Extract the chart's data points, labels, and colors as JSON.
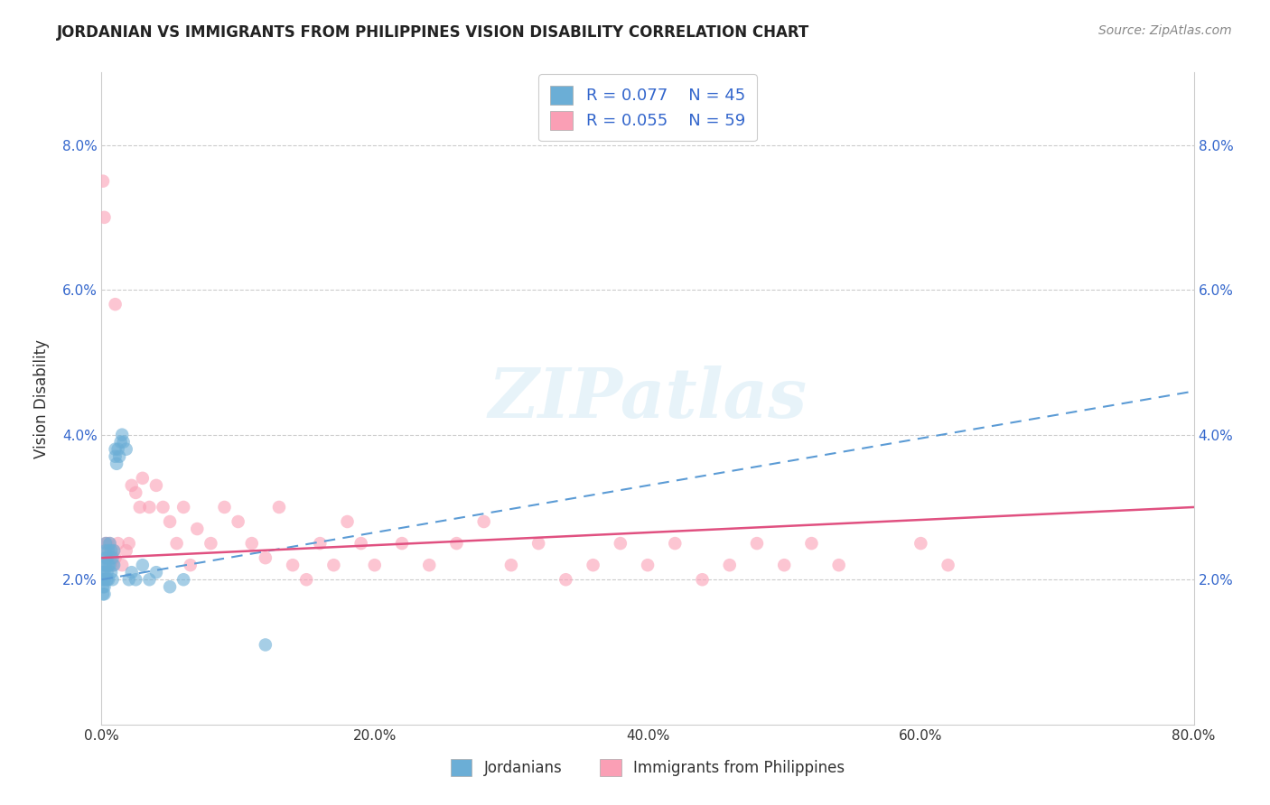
{
  "title": "JORDANIAN VS IMMIGRANTS FROM PHILIPPINES VISION DISABILITY CORRELATION CHART",
  "source": "Source: ZipAtlas.com",
  "xlabel_jordanians": "Jordanians",
  "xlabel_philippines": "Immigrants from Philippines",
  "ylabel": "Vision Disability",
  "xlim": [
    0,
    0.8
  ],
  "ylim": [
    0,
    0.09
  ],
  "xticks": [
    0.0,
    0.2,
    0.4,
    0.6,
    0.8
  ],
  "yticks": [
    0.02,
    0.04,
    0.06,
    0.08
  ],
  "ytick_labels": [
    "2.0%",
    "4.0%",
    "6.0%",
    "8.0%"
  ],
  "xtick_labels": [
    "0.0%",
    "20.0%",
    "40.0%",
    "60.0%",
    "80.0%"
  ],
  "color_jordanian": "#6baed6",
  "color_philippines": "#fa9fb5",
  "trendline_jordanian_color": "#5b9bd5",
  "trendline_philippines_color": "#e05080",
  "R_jordanian": 0.077,
  "N_jordanian": 45,
  "R_philippines": 0.055,
  "N_philippines": 59,
  "legend_text_color": "#3366cc",
  "background_color": "#ffffff",
  "grid_color": "#cccccc",
  "watermark": "ZIPatlas",
  "trendline_j_x0": 0.0,
  "trendline_j_y0": 0.02,
  "trendline_j_x1": 0.8,
  "trendline_j_y1": 0.046,
  "trendline_p_x0": 0.0,
  "trendline_p_y0": 0.023,
  "trendline_p_x1": 0.8,
  "trendline_p_y1": 0.03,
  "jordanian_x": [
    0.001,
    0.001,
    0.001,
    0.001,
    0.002,
    0.002,
    0.002,
    0.002,
    0.002,
    0.003,
    0.003,
    0.003,
    0.003,
    0.004,
    0.004,
    0.004,
    0.005,
    0.005,
    0.005,
    0.006,
    0.006,
    0.007,
    0.007,
    0.008,
    0.008,
    0.009,
    0.009,
    0.01,
    0.01,
    0.011,
    0.012,
    0.013,
    0.014,
    0.015,
    0.016,
    0.018,
    0.02,
    0.022,
    0.025,
    0.03,
    0.035,
    0.04,
    0.05,
    0.06,
    0.12
  ],
  "jordanian_y": [
    0.02,
    0.019,
    0.021,
    0.018,
    0.02,
    0.022,
    0.019,
    0.021,
    0.018,
    0.024,
    0.023,
    0.025,
    0.022,
    0.02,
    0.023,
    0.021,
    0.024,
    0.022,
    0.02,
    0.025,
    0.022,
    0.024,
    0.021,
    0.023,
    0.02,
    0.022,
    0.024,
    0.038,
    0.037,
    0.036,
    0.038,
    0.037,
    0.039,
    0.04,
    0.039,
    0.038,
    0.02,
    0.021,
    0.02,
    0.022,
    0.02,
    0.021,
    0.019,
    0.02,
    0.011
  ],
  "philippines_x": [
    0.001,
    0.002,
    0.003,
    0.004,
    0.005,
    0.006,
    0.007,
    0.008,
    0.009,
    0.01,
    0.012,
    0.015,
    0.018,
    0.02,
    0.022,
    0.025,
    0.028,
    0.03,
    0.035,
    0.04,
    0.045,
    0.05,
    0.055,
    0.06,
    0.065,
    0.07,
    0.08,
    0.09,
    0.1,
    0.11,
    0.12,
    0.13,
    0.14,
    0.15,
    0.16,
    0.17,
    0.18,
    0.19,
    0.2,
    0.22,
    0.24,
    0.26,
    0.28,
    0.3,
    0.32,
    0.34,
    0.36,
    0.38,
    0.4,
    0.42,
    0.44,
    0.46,
    0.48,
    0.5,
    0.52,
    0.54,
    0.6,
    0.62,
    0.01
  ],
  "philippines_y": [
    0.075,
    0.07,
    0.025,
    0.025,
    0.024,
    0.025,
    0.023,
    0.022,
    0.024,
    0.023,
    0.025,
    0.022,
    0.024,
    0.025,
    0.033,
    0.032,
    0.03,
    0.034,
    0.03,
    0.033,
    0.03,
    0.028,
    0.025,
    0.03,
    0.022,
    0.027,
    0.025,
    0.03,
    0.028,
    0.025,
    0.023,
    0.03,
    0.022,
    0.02,
    0.025,
    0.022,
    0.028,
    0.025,
    0.022,
    0.025,
    0.022,
    0.025,
    0.028,
    0.022,
    0.025,
    0.02,
    0.022,
    0.025,
    0.022,
    0.025,
    0.02,
    0.022,
    0.025,
    0.022,
    0.025,
    0.022,
    0.025,
    0.022,
    0.058
  ]
}
